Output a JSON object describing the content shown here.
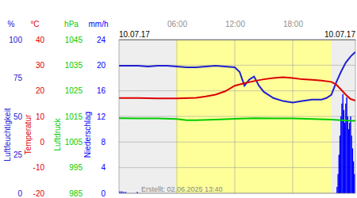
{
  "chart_data": {
    "type": "line",
    "annotations": [
      "10.07.17",
      "10.07.17",
      "Erstellt: 02.06.2025 13:40"
    ],
    "xlim": [
      0,
      24.5
    ],
    "xticks": [
      {
        "value": 6,
        "label": "06:00"
      },
      {
        "value": 12,
        "label": "12:00"
      },
      {
        "value": 18,
        "label": "18:00"
      }
    ],
    "grid": true,
    "daylight": [
      5.9,
      22.0
    ],
    "series": [
      {
        "name": "Luftfeuchtigkeit",
        "unit": "%",
        "type": "line",
        "color": "#2020d0",
        "ylim": [
          0,
          100
        ],
        "yticks": [
          0,
          25,
          50,
          75,
          100
        ],
        "x": [
          0,
          1,
          2,
          3,
          4,
          5,
          6,
          7,
          8,
          9,
          10,
          11,
          12,
          12.5,
          13,
          13.5,
          14,
          14.5,
          15,
          15.5,
          16,
          17,
          18,
          19,
          20,
          21,
          21.5,
          22,
          22.5,
          23,
          23.5,
          24,
          24.5
        ],
        "values": [
          83,
          83,
          83,
          82.5,
          83,
          83,
          82.5,
          82,
          82,
          82.5,
          83,
          82.5,
          82,
          79,
          70,
          74,
          76,
          70,
          66,
          64,
          62,
          60,
          59,
          60,
          61,
          61,
          62,
          64,
          72,
          79,
          85,
          89,
          92
        ]
      },
      {
        "name": "Temperatur",
        "unit": "°C",
        "type": "line",
        "color": "#dd0000",
        "ylim": [
          -20,
          40
        ],
        "yticks": [
          -20,
          -10,
          0,
          10,
          20,
          30,
          40
        ],
        "x": [
          0,
          2,
          4,
          6,
          8,
          9,
          10,
          11,
          12,
          13,
          14,
          15,
          16,
          17,
          18,
          19,
          20,
          21,
          22,
          22.5,
          23,
          23.5,
          24,
          24.5
        ],
        "values": [
          17.2,
          17.2,
          17.0,
          17.0,
          17.3,
          17.8,
          18.5,
          19.8,
          22.0,
          23.0,
          23.8,
          24.5,
          25.0,
          25.3,
          25.0,
          24.5,
          24.3,
          24.0,
          23.5,
          22.5,
          20.5,
          18.5,
          16.8,
          16.2
        ]
      },
      {
        "name": "Luftdruck",
        "unit": "hPa",
        "type": "line",
        "color": "#00cc00",
        "ylim": [
          985,
          1045
        ],
        "yticks": [
          985,
          995,
          1005,
          1015,
          1025,
          1035,
          1045
        ],
        "x": [
          0,
          2,
          4,
          6,
          7,
          8,
          10,
          12,
          14,
          16,
          18,
          20,
          22,
          23,
          24,
          24.5
        ],
        "values": [
          1014.3,
          1014.2,
          1014.2,
          1014.0,
          1013.5,
          1013.5,
          1013.8,
          1014.1,
          1014.3,
          1014.2,
          1014.2,
          1014.0,
          1013.8,
          1013.5,
          1013.3,
          1013.3
        ]
      },
      {
        "name": "Niederschlag",
        "unit": "mm/h",
        "type": "bar",
        "color": "#0000ff",
        "ylim": [
          0,
          24
        ],
        "yticks": [
          0,
          4,
          8,
          12,
          16,
          20,
          24
        ],
        "x": [
          0.1,
          0.3,
          0.5,
          0.7,
          1.9,
          22.6,
          22.7,
          22.8,
          22.9,
          23.0,
          23.1,
          23.2,
          23.3,
          23.4,
          23.5,
          23.6,
          23.7,
          23.8,
          23.9,
          24.0,
          24.1,
          24.2,
          24.3,
          24.4
        ],
        "values": [
          0.3,
          0.3,
          0.2,
          0.2,
          0.2,
          1,
          3,
          6,
          9,
          12,
          14,
          15.5,
          13,
          11,
          14,
          15,
          12,
          10,
          11,
          12,
          9,
          7,
          5,
          3
        ]
      }
    ]
  }
}
